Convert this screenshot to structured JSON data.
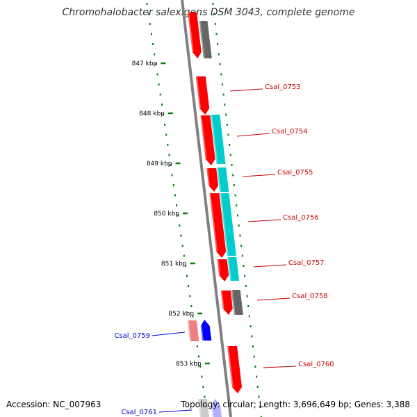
{
  "title": "Chromohalobacter salexigens DSM 3043, complete genome",
  "footer": {
    "accession": "Accession: NC_007963",
    "summary": "Topology: circular; Length: 3,696,649 bp; Genes: 3,388"
  },
  "colors": {
    "backbone": "#808080",
    "tick": "#008000",
    "forward_cds": "#ff0000",
    "forward_feature": "#00cccc",
    "reverse_cds": "#f08080",
    "reverse_feature": "#0000ff",
    "pseudo": "#666666",
    "label_forward": "#cc0000",
    "label_reverse": "#0000cc"
  },
  "ruler": [
    {
      "label": "847 kbp"
    },
    {
      "label": "848 kbp"
    },
    {
      "label": "849 kbp"
    },
    {
      "label": "850 kbp"
    },
    {
      "label": "851 kbp"
    },
    {
      "label": "852 kbp"
    },
    {
      "label": "853 kbp"
    }
  ],
  "genes": [
    {
      "label": "Csal_0753",
      "strand": "forward"
    },
    {
      "label": "Csal_0754",
      "strand": "forward"
    },
    {
      "label": "Csal_0755",
      "strand": "forward"
    },
    {
      "label": "Csal_0756",
      "strand": "forward"
    },
    {
      "label": "Csal_0757",
      "strand": "forward"
    },
    {
      "label": "Csal_0758",
      "strand": "forward"
    },
    {
      "label": "Csal_0759",
      "strand": "reverse"
    },
    {
      "label": "Csal_0760",
      "strand": "forward"
    },
    {
      "label": "Csal_0761",
      "strand": "reverse"
    }
  ]
}
